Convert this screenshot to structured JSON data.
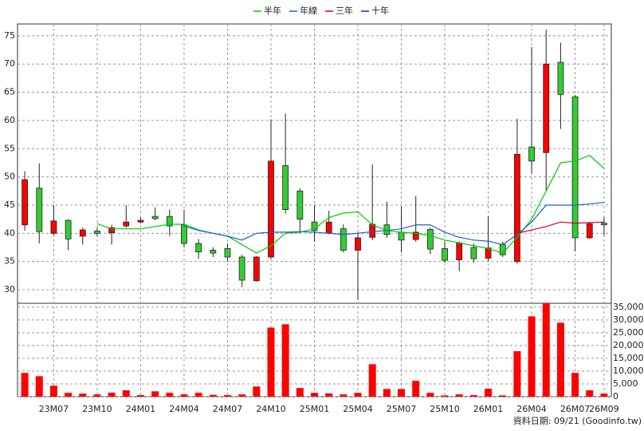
{
  "chart_data": [
    {
      "type": "candlestick",
      "open": [
        41.5,
        48,
        40,
        42.3,
        39.5,
        40.4,
        40.1,
        41.3,
        42,
        43,
        43,
        41.5,
        38.2,
        37,
        37.3,
        35.8,
        31.6,
        35.8,
        52,
        47.5,
        42,
        40,
        40.8,
        37,
        39.3,
        41.5,
        40.2,
        38.9,
        40.7,
        37.3,
        35.3,
        37.5,
        35.6,
        38,
        35,
        55.3,
        54.3,
        70.3,
        64.2,
        39.2,
        41.8
      ],
      "high": [
        51,
        52.4,
        45,
        42.5,
        41,
        41,
        41.5,
        45,
        42.8,
        44.6,
        44.2,
        44.2,
        39,
        37.5,
        38.2,
        36.2,
        36,
        60.2,
        61.2,
        48,
        45,
        44,
        41.6,
        40.2,
        52.2,
        45.6,
        44.8,
        46.6,
        41,
        38.5,
        38.6,
        38.2,
        43,
        38.5,
        60.3,
        73,
        76.1,
        73.8,
        64.5,
        42,
        42.8
      ],
      "low": [
        40.5,
        38.2,
        39.7,
        37,
        38,
        39.5,
        38,
        41,
        41.8,
        42.3,
        39.5,
        37.5,
        35.5,
        35.8,
        35,
        30.5,
        31.4,
        35.5,
        43.5,
        40,
        38.5,
        39.8,
        36.6,
        28.2,
        38.8,
        39.2,
        36.6,
        38.5,
        36.3,
        34.8,
        33.3,
        34.8,
        35,
        35.8,
        34.6,
        50.6,
        47.5,
        58.5,
        36.8,
        39,
        39.6
      ],
      "close": [
        49.5,
        40.3,
        42.2,
        39,
        40.6,
        40,
        41,
        42,
        42.3,
        42.6,
        41.3,
        38.2,
        36.7,
        36.5,
        35.8,
        31.7,
        35.8,
        52.8,
        44.2,
        42.5,
        40.5,
        42,
        37,
        39.2,
        41.6,
        39.8,
        38.8,
        40.2,
        37.2,
        35.2,
        38.3,
        35.5,
        37.4,
        36.2,
        54,
        52.8,
        70,
        64.6,
        39.2,
        41.7,
        41.5
      ],
      "up_color": "#ff0000",
      "down_color": "#33cc33",
      "ylim": [
        27.6,
        77.1
      ],
      "yticks": [
        30,
        35,
        40,
        45,
        50,
        55,
        60,
        65,
        70,
        75
      ],
      "grid": true,
      "legend": "top",
      "series": [
        {
          "name": "半年",
          "color": "#00cc00",
          "values": [
            null,
            null,
            null,
            null,
            null,
            41.7,
            40.8,
            40.8,
            40.8,
            41.2,
            41.6,
            41.6,
            40.6,
            40,
            39.5,
            38,
            36.5,
            37.8,
            40,
            40.2,
            40.8,
            42.8,
            43.6,
            43.8,
            41.5,
            40.5,
            40.2,
            40,
            39.6,
            38.8,
            38.3,
            37.8,
            37.3,
            36.5,
            39.3,
            42.5,
            47.5,
            52.5,
            52.8,
            53.8,
            51.5
          ]
        },
        {
          "name": "年線",
          "color": "#1f5fcf",
          "values": [
            null,
            null,
            null,
            null,
            null,
            null,
            null,
            null,
            null,
            null,
            null,
            41.3,
            40.5,
            40,
            39.5,
            38.8,
            40,
            40.2,
            40.2,
            40.3,
            40.2,
            40,
            39.8,
            40,
            40.3,
            40.5,
            40.8,
            41.5,
            41.5,
            40.2,
            39.3,
            38.8,
            38.6,
            38,
            39.8,
            42,
            45,
            45,
            45,
            45.2,
            45.5
          ]
        },
        {
          "name": "三年",
          "color": "#cc0033",
          "values": [
            null,
            null,
            null,
            null,
            null,
            null,
            null,
            null,
            null,
            null,
            null,
            null,
            null,
            null,
            null,
            null,
            null,
            null,
            null,
            null,
            null,
            null,
            null,
            null,
            null,
            null,
            null,
            null,
            null,
            null,
            null,
            null,
            null,
            null,
            40,
            40.6,
            41.2,
            42,
            41.8,
            41.9,
            42
          ]
        },
        {
          "name": "十年",
          "color": "#660099",
          "values": [
            null,
            null,
            null,
            null,
            null,
            null,
            null,
            null,
            null,
            null,
            null,
            null,
            null,
            null,
            null,
            null,
            null,
            null,
            null,
            null,
            null,
            null,
            null,
            null,
            null,
            null,
            null,
            null,
            null,
            null,
            null,
            null,
            null,
            null,
            null,
            null,
            null,
            null,
            null,
            null,
            null
          ]
        }
      ]
    },
    {
      "type": "bar",
      "categories": [
        null,
        null,
        "23M07",
        null,
        null,
        "23M10",
        null,
        null,
        "24M01",
        null,
        null,
        "24M04",
        null,
        null,
        "24M07",
        null,
        null,
        "24M10",
        null,
        null,
        "25M01",
        null,
        null,
        "25M04",
        null,
        null,
        "25M07",
        null,
        null,
        "25M10",
        null,
        null,
        "26M01",
        null,
        null,
        "26M04",
        null,
        null,
        "26M07",
        null,
        "26M09"
      ],
      "values": [
        9300,
        8000,
        4300,
        1500,
        1200,
        900,
        1600,
        2500,
        600,
        2100,
        1500,
        900,
        1500,
        700,
        600,
        900,
        4000,
        27000,
        28300,
        3400,
        1500,
        1300,
        900,
        1500,
        12700,
        3000,
        3000,
        6200,
        1500,
        500,
        900,
        600,
        3100,
        500,
        17800,
        31400,
        36500,
        28900,
        9300,
        2500,
        1200
      ],
      "color": "#ff0000",
      "ylim": [
        0,
        36500
      ],
      "yticks": [
        0,
        {
          "value": 5000,
          "label": "5,000"
        },
        {
          "value": 10000,
          "label": "10,000"
        },
        {
          "value": 15000,
          "label": "15,000"
        },
        {
          "value": 20000,
          "label": "20,000"
        },
        {
          "value": 25000,
          "label": "25,000"
        },
        {
          "value": 30000,
          "label": "30,000"
        },
        {
          "value": 35000,
          "label": "35,000"
        }
      ],
      "grid": true,
      "note": "資料日期: 09/21  (Goodinfo.tw)"
    }
  ]
}
